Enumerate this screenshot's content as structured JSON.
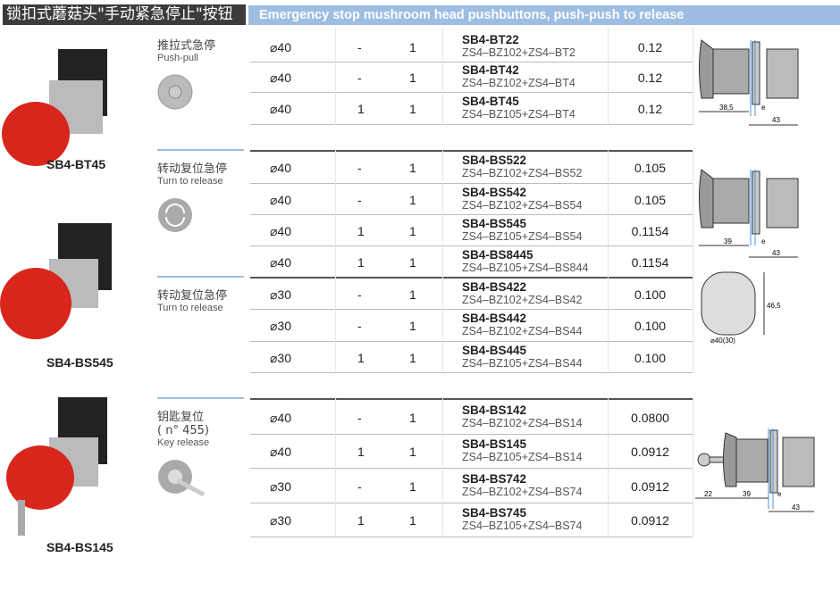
{
  "header": {
    "title_cn": "锁扣式蘑菇头\"手动紧急停止\"按钮",
    "title_en": "Emergency stop mushroom head pushbuttons, push-push to release"
  },
  "products": [
    {
      "name": "SB4-BT45"
    },
    {
      "name": "SB4-BS545"
    },
    {
      "name": "SB4-BS145"
    }
  ],
  "groups": [
    {
      "label_cn": "推拉式急停",
      "label_en": "Push-pull",
      "icon": "push-pull-icon",
      "rows": [
        {
          "d": "⌀40",
          "no": "-",
          "nc": "1",
          "model": "SB4-BT22",
          "parts": "ZS4–BZ102+ZS4–BT2",
          "weight": "0.12"
        },
        {
          "d": "⌀40",
          "no": "-",
          "nc": "1",
          "model": "SB4-BT42",
          "parts": "ZS4–BZ102+ZS4–BT4",
          "weight": "0.12"
        },
        {
          "d": "⌀40",
          "no": "1",
          "nc": "1",
          "model": "SB4-BT45",
          "parts": "ZS4–BZ105+ZS4–BT4",
          "weight": "0.12"
        }
      ]
    },
    {
      "label_cn": "转动复位急停",
      "label_en": "Turn to release",
      "icon": "turn-release-icon",
      "rows": [
        {
          "d": "⌀40",
          "no": "-",
          "nc": "1",
          "model": "SB4-BS522",
          "parts": "ZS4–BZ102+ZS4–BS52",
          "weight": "0.105"
        },
        {
          "d": "⌀40",
          "no": "-",
          "nc": "1",
          "model": "SB4-BS542",
          "parts": "ZS4–BZ102+ZS4–BS54",
          "weight": "0.105"
        },
        {
          "d": "⌀40",
          "no": "1",
          "nc": "1",
          "model": "SB4-BS545",
          "parts": "ZS4–BZ105+ZS4–BS54",
          "weight": "0.1154"
        },
        {
          "d": "⌀40",
          "no": "1",
          "nc": "1",
          "model": "SB4-BS8445",
          "parts": "ZS4–BZ105+ZS4–BS844",
          "weight": "0.1154"
        }
      ]
    },
    {
      "label_cn": "转动复位急停",
      "label_en": "Turn to release",
      "rows": [
        {
          "d": "⌀30",
          "no": "-",
          "nc": "1",
          "model": "SB4-BS422",
          "parts": "ZS4–BZ102+ZS4–BS42",
          "weight": "0.100"
        },
        {
          "d": "⌀30",
          "no": "-",
          "nc": "1",
          "model": "SB4-BS442",
          "parts": "ZS4–BZ102+ZS4–BS44",
          "weight": "0.100"
        },
        {
          "d": "⌀30",
          "no": "1",
          "nc": "1",
          "model": "SB4-BS445",
          "parts": "ZS4–BZ105+ZS4–BS44",
          "weight": "0.100"
        }
      ]
    },
    {
      "label_cn": "钥匙复位",
      "label_sub": "( n°  455)",
      "label_en": "Key release",
      "icon": "key-release-icon",
      "rows": [
        {
          "d": "⌀40",
          "no": "-",
          "nc": "1",
          "model": "SB4-BS142",
          "parts": "ZS4–BZ102+ZS4–BS14",
          "weight": "0.0800"
        },
        {
          "d": "⌀40",
          "no": "1",
          "nc": "1",
          "model": "SB4-BS145",
          "parts": "ZS4–BZ105+ZS4–BS14",
          "weight": "0.0912"
        },
        {
          "d": "⌀30",
          "no": "-",
          "nc": "1",
          "model": "SB4-BS742",
          "parts": "ZS4–BZ102+ZS4–BS74",
          "weight": "0.0912"
        },
        {
          "d": "⌀30",
          "no": "1",
          "nc": "1",
          "model": "SB4-BS745",
          "parts": "ZS4–BZ105+ZS4–BS74",
          "weight": "0.0912"
        }
      ]
    }
  ],
  "dimensions": {
    "d1": [
      "38,5",
      "e",
      "43"
    ],
    "d2": [
      "39",
      "e",
      "43"
    ],
    "d3": [
      "46,5",
      "⌀40(30)"
    ],
    "d4": [
      "22",
      "39",
      "e",
      "43"
    ]
  }
}
